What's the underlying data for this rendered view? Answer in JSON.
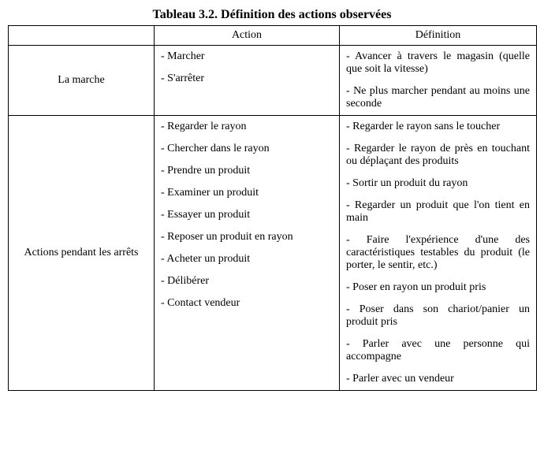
{
  "title": "Tableau 3.2. Définition des actions observées",
  "columns": [
    "",
    "Action",
    "Définition"
  ],
  "groups": [
    {
      "category": "La marche",
      "items": [
        {
          "action": "- Marcher",
          "definition": "- Avancer à travers le magasin (quelle que soit la vitesse)"
        },
        {
          "action": "- S'arrêter",
          "definition": "- Ne plus marcher pendant au moins une seconde"
        }
      ]
    },
    {
      "category": "Actions pendant les arrêts",
      "items": [
        {
          "action": "- Regarder le rayon",
          "definition": "- Regarder le rayon sans le toucher"
        },
        {
          "action": "- Chercher dans le rayon",
          "definition": "- Regarder le rayon de près en touchant ou déplaçant des produits"
        },
        {
          "action": "- Prendre un produit",
          "definition": "- Sortir un produit du rayon"
        },
        {
          "action": "- Examiner un produit",
          "definition": "- Regarder un produit que l'on tient en main"
        },
        {
          "action": "- Essayer un produit",
          "definition": "- Faire l'expérience d'une des caractéristiques testables du produit (le porter, le sentir, etc.)"
        },
        {
          "action": "- Reposer un produit en rayon",
          "definition": "- Poser en rayon un produit pris"
        },
        {
          "action": "- Acheter un produit",
          "definition": "- Poser dans son chariot/panier un produit pris"
        },
        {
          "action": "- Délibérer",
          "definition": "- Parler avec une personne qui accompagne"
        },
        {
          "action": "- Contact vendeur",
          "definition": "- Parler avec un vendeur"
        }
      ]
    }
  ]
}
